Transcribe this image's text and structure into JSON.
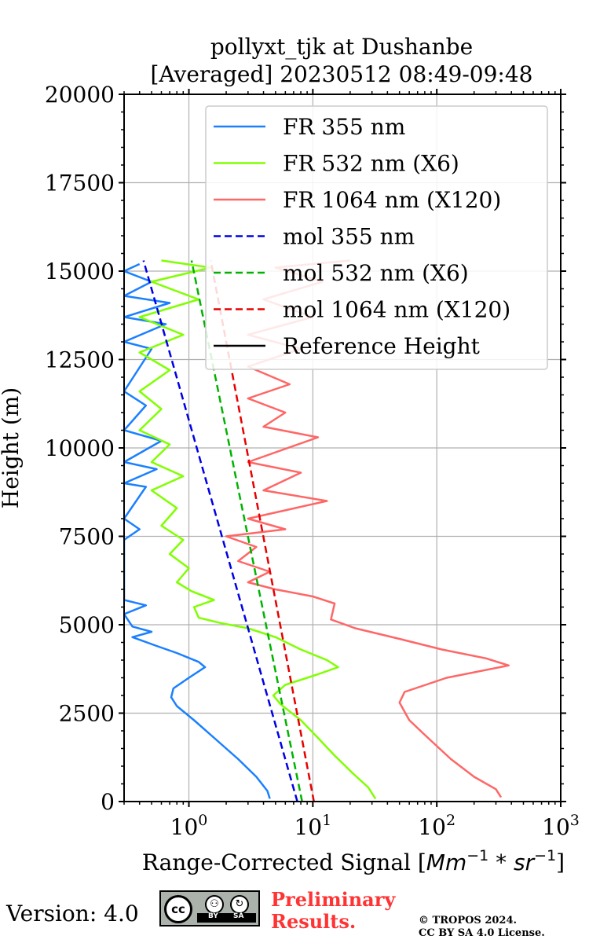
{
  "chart_data": {
    "type": "line",
    "title_line1": "pollyxt_tjk at Dushanbe",
    "title_line2": "[Averaged] 20230512 08:49-09:48",
    "xlabel_prefix": "Range-Corrected Signal [",
    "xlabel_math": "Mm",
    "xlabel_math2": "−1",
    "xlabel_math3": " * sr",
    "xlabel_math4": "−1",
    "xlabel_suffix": "]",
    "ylabel": "Height (m)",
    "xscale": "log",
    "xlim": [
      0.3,
      1000
    ],
    "ylim": [
      0,
      20000
    ],
    "grid": true,
    "legend_position": "top-right",
    "yticks": [
      "0",
      "2500",
      "5000",
      "7500",
      "10000",
      "12500",
      "15000",
      "17500",
      "20000"
    ],
    "ytick_values": [
      0,
      2500,
      5000,
      7500,
      10000,
      12500,
      15000,
      17500,
      20000
    ],
    "xticks": [
      {
        "base": "10",
        "exp": "0",
        "value": 1
      },
      {
        "base": "10",
        "exp": "1",
        "value": 10
      },
      {
        "base": "10",
        "exp": "2",
        "value": 100
      },
      {
        "base": "10",
        "exp": "3",
        "value": 1000
      }
    ],
    "series": [
      {
        "name": "FR 355 nm",
        "color": "#1a80ff",
        "style": "solid",
        "points": [
          [
            4.5,
            80
          ],
          [
            4.3,
            300
          ],
          [
            3.5,
            700
          ],
          [
            2.5,
            1200
          ],
          [
            1.6,
            1800
          ],
          [
            1.1,
            2300
          ],
          [
            0.8,
            2700
          ],
          [
            0.72,
            2950
          ],
          [
            0.75,
            3200
          ],
          [
            1.0,
            3500
          ],
          [
            1.35,
            3800
          ],
          [
            1.2,
            3950
          ],
          [
            0.8,
            4200
          ],
          [
            0.55,
            4400
          ],
          [
            0.35,
            4650
          ],
          [
            0.5,
            4800
          ],
          [
            0.35,
            4950
          ],
          [
            0.3,
            5300
          ],
          [
            0.45,
            5550
          ],
          [
            0.3,
            5700
          ],
          [
            0.3,
            7400
          ],
          [
            0.4,
            7700
          ],
          [
            0.3,
            8000
          ],
          [
            0.45,
            8900
          ],
          [
            0.3,
            9000
          ],
          [
            0.55,
            9400
          ],
          [
            0.3,
            9600
          ],
          [
            0.6,
            10200
          ],
          [
            0.3,
            10500
          ],
          [
            0.45,
            11200
          ],
          [
            0.3,
            11600
          ],
          [
            0.5,
            12800
          ],
          [
            0.3,
            13000
          ],
          [
            0.65,
            13500
          ],
          [
            0.3,
            13700
          ],
          [
            0.7,
            14100
          ],
          [
            0.3,
            14300
          ],
          [
            0.5,
            14700
          ],
          [
            0.3,
            15000
          ],
          [
            0.4,
            15200
          ]
        ]
      },
      {
        "name": "FR 532 nm (X6)",
        "color": "#80ff00",
        "style": "solid",
        "points": [
          [
            32,
            80
          ],
          [
            28,
            400
          ],
          [
            21,
            800
          ],
          [
            15,
            1300
          ],
          [
            11,
            1800
          ],
          [
            8,
            2300
          ],
          [
            5.5,
            2750
          ],
          [
            4.8,
            3000
          ],
          [
            6,
            3300
          ],
          [
            11,
            3600
          ],
          [
            16,
            3800
          ],
          [
            13,
            4000
          ],
          [
            8,
            4300
          ],
          [
            5,
            4650
          ],
          [
            3,
            4900
          ],
          [
            1.8,
            5050
          ],
          [
            1.2,
            5200
          ],
          [
            1.1,
            5500
          ],
          [
            1.6,
            5700
          ],
          [
            1.05,
            5950
          ],
          [
            0.8,
            6200
          ],
          [
            1.0,
            6600
          ],
          [
            0.7,
            7000
          ],
          [
            0.9,
            7400
          ],
          [
            0.6,
            7800
          ],
          [
            0.8,
            8300
          ],
          [
            0.5,
            8800
          ],
          [
            0.9,
            9200
          ],
          [
            0.5,
            9600
          ],
          [
            0.7,
            10100
          ],
          [
            0.4,
            10500
          ],
          [
            0.6,
            11100
          ],
          [
            0.4,
            11600
          ],
          [
            0.7,
            12200
          ],
          [
            0.4,
            12700
          ],
          [
            0.9,
            13200
          ],
          [
            0.4,
            13700
          ],
          [
            1.2,
            14200
          ],
          [
            0.5,
            14700
          ],
          [
            1.5,
            15100
          ],
          [
            0.6,
            15300
          ]
        ]
      },
      {
        "name": "FR 1064 nm (X120)",
        "color": "#ff6666",
        "style": "solid",
        "points": [
          [
            330,
            120
          ],
          [
            300,
            350
          ],
          [
            200,
            700
          ],
          [
            130,
            1200
          ],
          [
            85,
            1800
          ],
          [
            60,
            2300
          ],
          [
            50,
            2800
          ],
          [
            55,
            3100
          ],
          [
            120,
            3500
          ],
          [
            380,
            3850
          ],
          [
            250,
            4050
          ],
          [
            110,
            4300
          ],
          [
            50,
            4600
          ],
          [
            22,
            4900
          ],
          [
            14,
            5150
          ],
          [
            15,
            5600
          ],
          [
            10,
            5800
          ],
          [
            5,
            6000
          ],
          [
            3,
            6200
          ],
          [
            4.5,
            6500
          ],
          [
            2.5,
            6800
          ],
          [
            3.5,
            7200
          ],
          [
            2,
            7500
          ],
          [
            6,
            7700
          ],
          [
            3,
            8000
          ],
          [
            13,
            8500
          ],
          [
            4,
            8800
          ],
          [
            8,
            9300
          ],
          [
            3,
            9600
          ],
          [
            11,
            10300
          ],
          [
            4,
            10600
          ],
          [
            6,
            11000
          ],
          [
            3,
            11400
          ],
          [
            6.5,
            11800
          ],
          [
            3,
            12300
          ],
          [
            8,
            12800
          ],
          [
            3,
            13200
          ],
          [
            10,
            13700
          ],
          [
            4,
            14200
          ],
          [
            12,
            14700
          ],
          [
            5,
            15100
          ],
          [
            20,
            15300
          ]
        ]
      },
      {
        "name": "mol 355 nm",
        "color": "#0000e6",
        "style": "dashed",
        "points": [
          [
            7.5,
            0
          ],
          [
            0.43,
            15300
          ]
        ]
      },
      {
        "name": "mol 532 nm (X6)",
        "color": "#00b300",
        "style": "dashed",
        "points": [
          [
            8.2,
            0
          ],
          [
            1.05,
            15300
          ]
        ]
      },
      {
        "name": "mol 1064 nm (X120)",
        "color": "#e60000",
        "style": "dashed",
        "points": [
          [
            10.2,
            0
          ],
          [
            1.5,
            15300
          ]
        ]
      },
      {
        "name": "Reference Height",
        "color": "#000000",
        "style": "solid",
        "points": []
      }
    ]
  },
  "footer": {
    "version": "Version: 4.0",
    "cc_label": "cc",
    "cc_by": "BY",
    "cc_sa": "SA",
    "preliminary_line1": "Preliminary",
    "preliminary_line2": "Results.",
    "copyright_line1": "© TROPOS 2024.",
    "copyright_line2": "CC BY SA 4.0 License."
  }
}
